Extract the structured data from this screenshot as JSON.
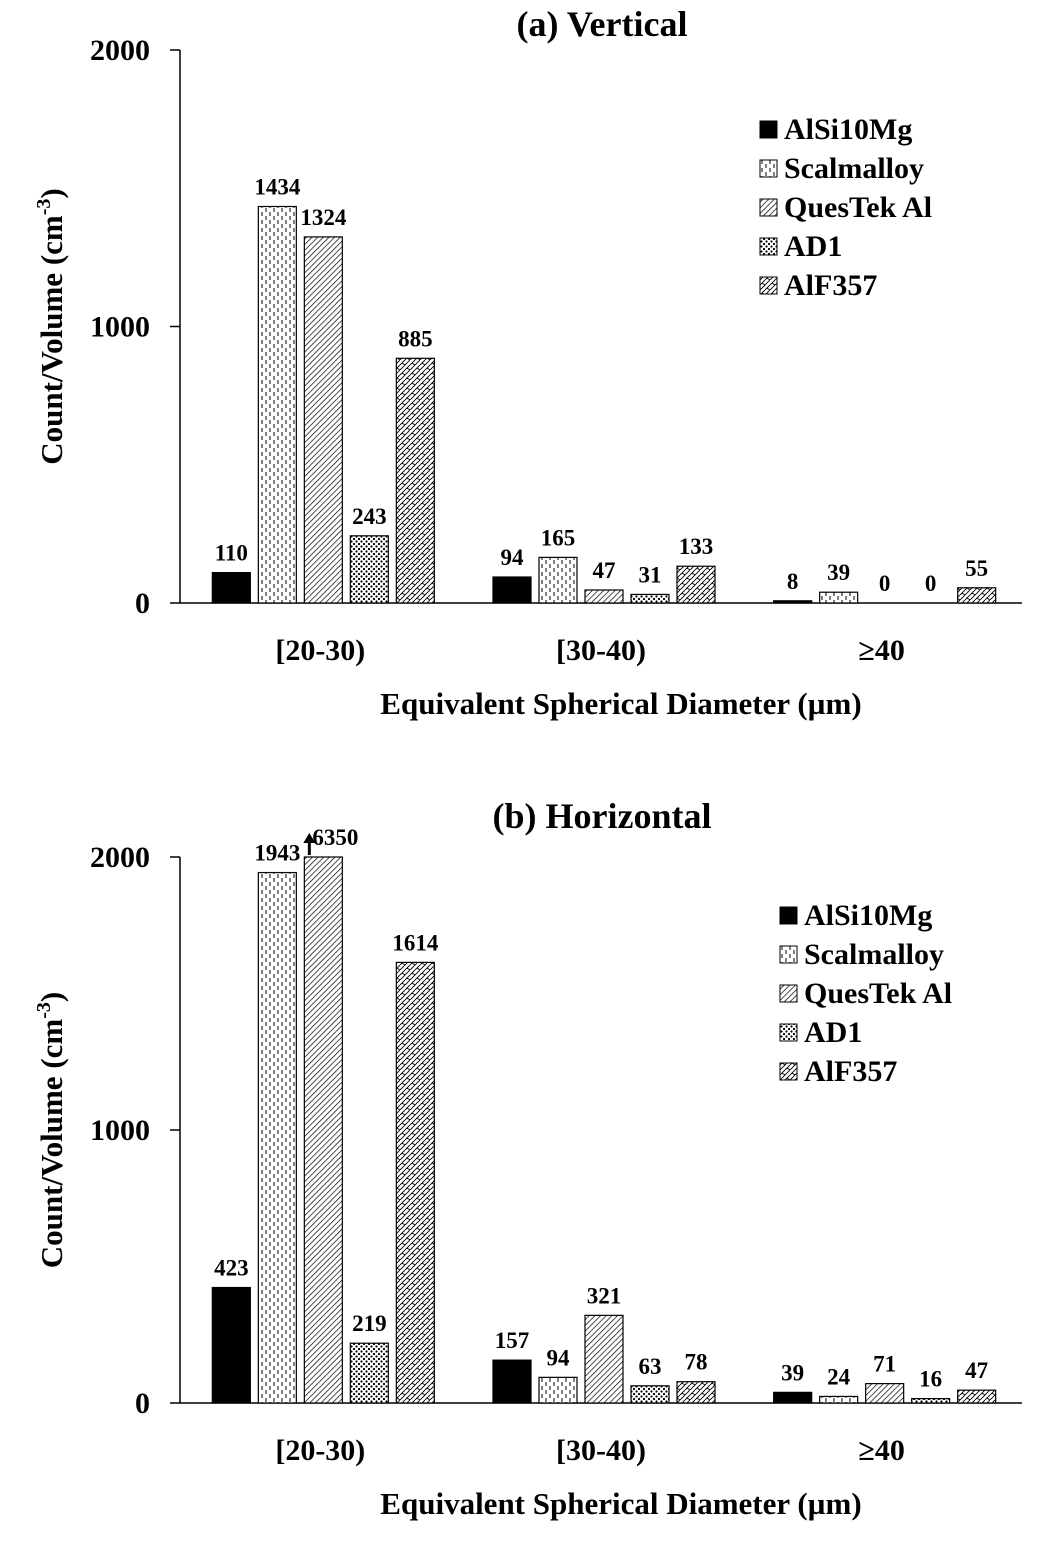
{
  "figure": {
    "legend": [
      "AlSi10Mg",
      "Scalmalloy",
      "QuesTek Al",
      "AD1",
      "AlF357"
    ],
    "colors": {
      "ink": "#000000",
      "background": "#ffffff"
    }
  },
  "chart_data": [
    {
      "type": "bar",
      "title": "(a) Vertical",
      "xlabel": "Equivalent Spherical Diameter (µm)",
      "ylabel": "Count/Volume (cm-3)",
      "ylim": [
        0,
        2000
      ],
      "yticks": [
        0,
        1000,
        2000
      ],
      "categories": [
        "[20-30)",
        "[30-40)",
        "≥40"
      ],
      "legend_position": "upper right",
      "series": [
        {
          "name": "AlSi10Mg",
          "pattern": "solid",
          "values": [
            110,
            94,
            8
          ]
        },
        {
          "name": "Scalmalloy",
          "pattern": "dashes",
          "values": [
            1434,
            165,
            39
          ]
        },
        {
          "name": "QuesTek Al",
          "pattern": "diagonal",
          "values": [
            1324,
            47,
            0
          ]
        },
        {
          "name": "AD1",
          "pattern": "dots",
          "values": [
            243,
            31,
            0
          ]
        },
        {
          "name": "AlF357",
          "pattern": "crosshatch",
          "values": [
            885,
            133,
            55
          ]
        }
      ]
    },
    {
      "type": "bar",
      "title": "(b) Horizontal",
      "xlabel": "Equivalent Spherical Diameter (µm)",
      "ylabel": "Count/Volume (cm-3)",
      "ylim": [
        0,
        2000
      ],
      "yticks": [
        0,
        1000,
        2000
      ],
      "categories": [
        "[20-30)",
        "[30-40)",
        "≥40"
      ],
      "legend_position": "upper right",
      "annotations": [
        {
          "series": "QuesTek Al",
          "category": "[20-30)",
          "text": "6350",
          "note": "bar clipped at axis max, arrow indicates overflow"
        }
      ],
      "series": [
        {
          "name": "AlSi10Mg",
          "pattern": "solid",
          "values": [
            423,
            157,
            39
          ]
        },
        {
          "name": "Scalmalloy",
          "pattern": "dashes",
          "values": [
            1943,
            94,
            24
          ]
        },
        {
          "name": "QuesTek Al",
          "pattern": "diagonal",
          "values": [
            6350,
            321,
            71
          ]
        },
        {
          "name": "AD1",
          "pattern": "dots",
          "values": [
            219,
            63,
            16
          ]
        },
        {
          "name": "AlF357",
          "pattern": "crosshatch",
          "values": [
            1614,
            78,
            47
          ]
        }
      ]
    }
  ]
}
